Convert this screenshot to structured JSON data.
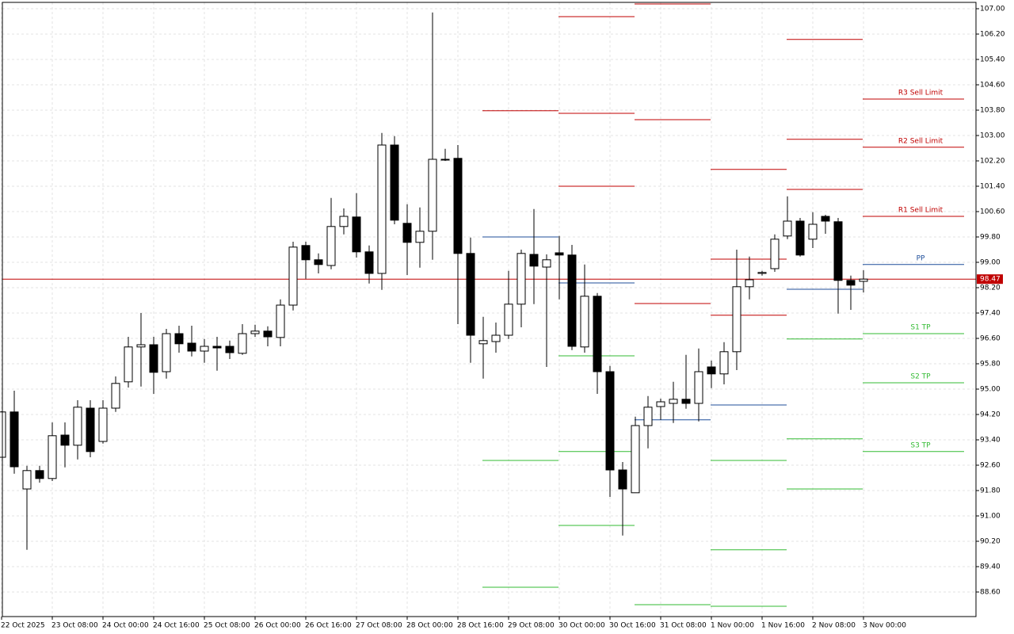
{
  "chart_data": {
    "type": "candlestick",
    "categories": [
      "22 Oct 2025",
      null,
      null,
      null,
      "23 Oct 08:00",
      null,
      null,
      null,
      "24 Oct 00:00",
      null,
      null,
      null,
      "24 Oct 16:00",
      null,
      null,
      null,
      "25 Oct 08:00",
      null,
      null,
      null,
      "26 Oct 00:00",
      null,
      null,
      null,
      "26 Oct 16:00",
      null,
      null,
      null,
      "27 Oct 08:00",
      null,
      null,
      null,
      "28 Oct 00:00",
      null,
      null,
      null,
      "28 Oct 16:00",
      null,
      null,
      null,
      "29 Oct 08:00",
      null,
      null,
      null,
      "30 Oct 00:00",
      null,
      null,
      null,
      "30 Oct 16:00",
      null,
      null,
      null,
      "31 Oct 08:00",
      null,
      null,
      null,
      "1 Nov 00:00",
      null,
      null,
      null,
      "1 Nov 16:00",
      null,
      null,
      null,
      "2 Nov 08:00",
      null,
      null,
      null,
      "3 Nov 00:00"
    ],
    "open": [
      92.85,
      94.28,
      91.85,
      92.43,
      92.18,
      93.55,
      93.23,
      94.4,
      93.35,
      94.4,
      95.23,
      96.33,
      96.4,
      95.55,
      96.75,
      96.45,
      96.2,
      96.35,
      96.35,
      96.13,
      96.75,
      96.83,
      96.63,
      97.65,
      99.53,
      99.08,
      98.9,
      100.13,
      100.43,
      99.33,
      98.65,
      102.7,
      100.23,
      99.63,
      99.98,
      102.25,
      102.28,
      99.28,
      96.43,
      96.5,
      96.7,
      97.68,
      99.25,
      98.85,
      99.3,
      99.23,
      96.33,
      97.93,
      95.55,
      92.45,
      91.73,
      93.85,
      94.45,
      94.55,
      94.68,
      94.55,
      95.7,
      95.48,
      96.18,
      98.23,
      98.65,
      98.8,
      99.83,
      100.3,
      99.73,
      100.45,
      100.28,
      98.43,
      98.4
    ],
    "high": [
      94.3,
      94.95,
      92.58,
      92.58,
      93.95,
      93.95,
      94.65,
      94.65,
      94.65,
      95.4,
      96.65,
      97.4,
      96.65,
      96.9,
      97.0,
      97.0,
      96.58,
      96.65,
      96.53,
      97.05,
      97.03,
      96.98,
      97.83,
      99.65,
      99.65,
      99.28,
      101.03,
      100.7,
      101.18,
      99.53,
      103.08,
      102.98,
      100.83,
      100.73,
      106.88,
      102.58,
      102.7,
      99.78,
      97.28,
      97.1,
      98.73,
      99.4,
      100.68,
      99.25,
      99.83,
      99.55,
      98.93,
      98.03,
      95.73,
      92.7,
      94.13,
      94.78,
      94.7,
      95.23,
      96.08,
      96.28,
      95.9,
      96.48,
      99.4,
      99.18,
      98.73,
      99.88,
      101.08,
      100.4,
      100.58,
      100.5,
      100.4,
      98.58,
      98.75
    ],
    "low": [
      92.85,
      92.33,
      89.93,
      92.05,
      92.1,
      92.53,
      92.78,
      92.85,
      93.28,
      94.28,
      95.05,
      95.08,
      94.85,
      95.33,
      96.15,
      96.03,
      95.83,
      95.58,
      95.95,
      96.08,
      96.65,
      96.35,
      96.35,
      97.48,
      98.48,
      98.65,
      98.78,
      99.88,
      99.15,
      98.33,
      98.13,
      100.2,
      98.6,
      98.83,
      99.08,
      102.2,
      97.05,
      95.83,
      95.33,
      96.15,
      96.58,
      96.95,
      97.68,
      95.7,
      97.83,
      96.23,
      96.15,
      94.85,
      91.6,
      90.38,
      91.73,
      93.13,
      94.03,
      93.93,
      94.38,
      93.98,
      95.03,
      95.15,
      95.6,
      97.83,
      98.58,
      98.7,
      99.73,
      99.18,
      99.45,
      99.9,
      97.38,
      97.5,
      98.05
    ],
    "close": [
      94.28,
      92.55,
      92.43,
      92.18,
      93.53,
      93.23,
      94.43,
      93.03,
      94.4,
      95.18,
      96.33,
      96.4,
      95.53,
      96.75,
      96.43,
      96.2,
      96.35,
      96.3,
      96.15,
      96.75,
      96.83,
      96.65,
      97.65,
      99.48,
      99.08,
      98.93,
      100.13,
      100.45,
      99.33,
      98.65,
      102.7,
      100.33,
      99.63,
      99.98,
      102.25,
      102.23,
      99.28,
      96.7,
      96.53,
      96.7,
      97.68,
      99.28,
      98.88,
      99.08,
      99.23,
      96.35,
      97.93,
      95.55,
      92.45,
      91.85,
      93.85,
      94.43,
      94.6,
      94.68,
      94.55,
      95.55,
      95.48,
      96.18,
      98.23,
      98.45,
      98.68,
      99.73,
      100.3,
      99.23,
      100.2,
      100.3,
      98.43,
      98.28,
      98.47
    ],
    "up_color": "#ffffff",
    "down_color": "#000000",
    "ylim": [
      87.825,
      107.2
    ],
    "yticks": [
      {
        "value": 107,
        "label": "107.00"
      },
      {
        "value": 106.2,
        "label": "106.20"
      },
      {
        "value": 105.4,
        "label": "105.40"
      },
      {
        "value": 104.6,
        "label": "104.60"
      },
      {
        "value": 103.8,
        "label": "103.80"
      },
      {
        "value": 103,
        "label": "103.00"
      },
      {
        "value": 102.2,
        "label": "102.20"
      },
      {
        "value": 101.4,
        "label": "101.40"
      },
      {
        "value": 100.6,
        "label": "100.60"
      },
      {
        "value": 99.8,
        "label": "99.80"
      },
      {
        "value": 99,
        "label": "99.00"
      },
      {
        "value": 98.2,
        "label": "98.20"
      },
      {
        "value": 97.4,
        "label": "97.40"
      },
      {
        "value": 96.6,
        "label": "96.60"
      },
      {
        "value": 95.8,
        "label": "95.80"
      },
      {
        "value": 95,
        "label": "95.00"
      },
      {
        "value": 94.2,
        "label": "94.20"
      },
      {
        "value": 93.4,
        "label": "93.40"
      },
      {
        "value": 92.6,
        "label": "92.60"
      },
      {
        "value": 91.8,
        "label": "91.80"
      },
      {
        "value": 91,
        "label": "91.00"
      },
      {
        "value": 90.2,
        "label": "90.20"
      },
      {
        "value": 89.4,
        "label": "89.40"
      },
      {
        "value": 88.6,
        "label": "88.60"
      }
    ],
    "grid": true,
    "current_price": 98.47,
    "current_price_color": "#c00000",
    "resistance_color": "#c00000",
    "pivot_color": "#1f4e9a",
    "support_color": "#33bb33",
    "pivot_days": [
      {
        "resistance": [
          103.78
        ],
        "pivot": 99.8,
        "support": [
          92.75,
          88.75
        ]
      },
      {
        "resistance": [
          106.75,
          103.7,
          101.4
        ],
        "pivot": 98.35,
        "support": [
          96.05,
          93.03,
          90.7
        ]
      },
      {
        "resistance": [
          107.15,
          103.5,
          97.7
        ],
        "pivot": 94.03,
        "support": [
          88.2
        ]
      },
      {
        "resistance": [
          101.93,
          99.1,
          97.33
        ],
        "pivot": 94.5,
        "support": [
          92.75,
          89.93,
          88.15
        ]
      },
      {
        "resistance": [
          106.03,
          102.88,
          101.3
        ],
        "pivot": 98.15,
        "support": [
          96.58,
          93.43,
          91.85
        ]
      }
    ],
    "levels": [
      {
        "label": "R3 Sell Limit",
        "value": 104.15,
        "kind": "resistance"
      },
      {
        "label": "R2 Sell Limit",
        "value": 102.63,
        "kind": "resistance"
      },
      {
        "label": "R1 Sell Limit",
        "value": 100.45,
        "kind": "resistance"
      },
      {
        "label": "PP",
        "value": 98.93,
        "kind": "pivot"
      },
      {
        "label": "S1 TP",
        "value": 96.75,
        "kind": "support"
      },
      {
        "label": "S2 TP",
        "value": 95.2,
        "kind": "support"
      },
      {
        "label": "S3 TP",
        "value": 93.03,
        "kind": "support"
      }
    ]
  }
}
